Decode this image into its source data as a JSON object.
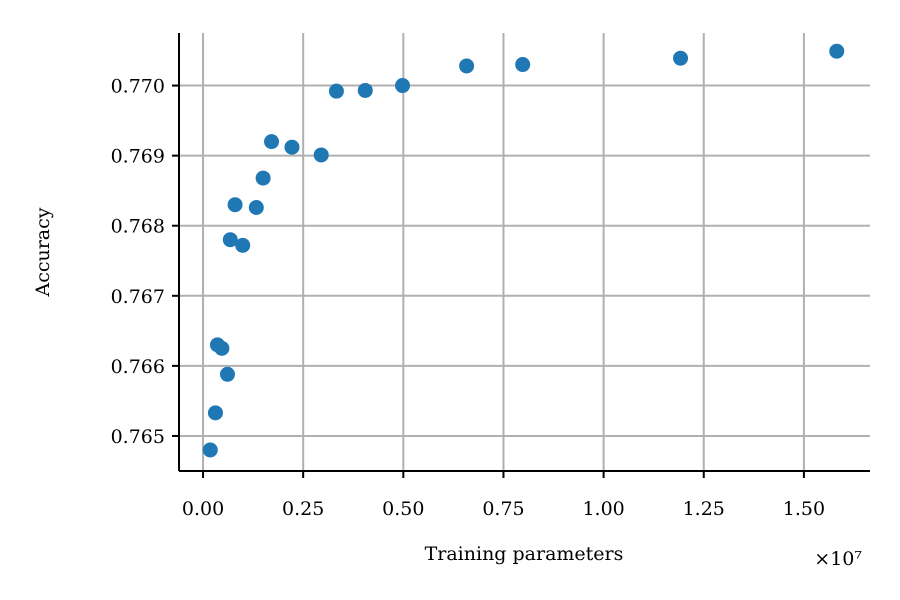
{
  "chart_data": {
    "type": "scatter",
    "xlabel": "Training parameters",
    "ylabel": "Accuracy",
    "x_offset_label": "×10⁷",
    "x_scale_factor": 10000000,
    "xlim": [
      -0.06,
      1.665
    ],
    "ylim": [
      0.7645,
      0.77075
    ],
    "x_ticks": [
      {
        "value": 0.0,
        "label": "0.00"
      },
      {
        "value": 0.25,
        "label": "0.25"
      },
      {
        "value": 0.5,
        "label": "0.50"
      },
      {
        "value": 0.75,
        "label": "0.75"
      },
      {
        "value": 1.0,
        "label": "1.00"
      },
      {
        "value": 1.25,
        "label": "1.25"
      },
      {
        "value": 1.5,
        "label": "1.50"
      }
    ],
    "y_ticks": [
      {
        "value": 0.765,
        "label": "0.765"
      },
      {
        "value": 0.766,
        "label": "0.766"
      },
      {
        "value": 0.767,
        "label": "0.767"
      },
      {
        "value": 0.768,
        "label": "0.768"
      },
      {
        "value": 0.769,
        "label": "0.769"
      },
      {
        "value": 0.77,
        "label": "0.770"
      }
    ],
    "grid": true,
    "color": "#1f77b4",
    "series": [
      {
        "points": [
          {
            "x": 0.018,
            "y": 0.7648
          },
          {
            "x": 0.031,
            "y": 0.76533
          },
          {
            "x": 0.036,
            "y": 0.7663
          },
          {
            "x": 0.047,
            "y": 0.76625
          },
          {
            "x": 0.061,
            "y": 0.76588
          },
          {
            "x": 0.068,
            "y": 0.7678
          },
          {
            "x": 0.08,
            "y": 0.7683
          },
          {
            "x": 0.099,
            "y": 0.76772
          },
          {
            "x": 0.133,
            "y": 0.76826
          },
          {
            "x": 0.15,
            "y": 0.76868
          },
          {
            "x": 0.171,
            "y": 0.7692
          },
          {
            "x": 0.222,
            "y": 0.76912
          },
          {
            "x": 0.295,
            "y": 0.76901
          },
          {
            "x": 0.333,
            "y": 0.76992
          },
          {
            "x": 0.405,
            "y": 0.76993
          },
          {
            "x": 0.498,
            "y": 0.77
          },
          {
            "x": 0.658,
            "y": 0.77028
          },
          {
            "x": 0.798,
            "y": 0.7703
          },
          {
            "x": 1.192,
            "y": 0.77039
          },
          {
            "x": 1.582,
            "y": 0.77049
          }
        ]
      }
    ]
  }
}
